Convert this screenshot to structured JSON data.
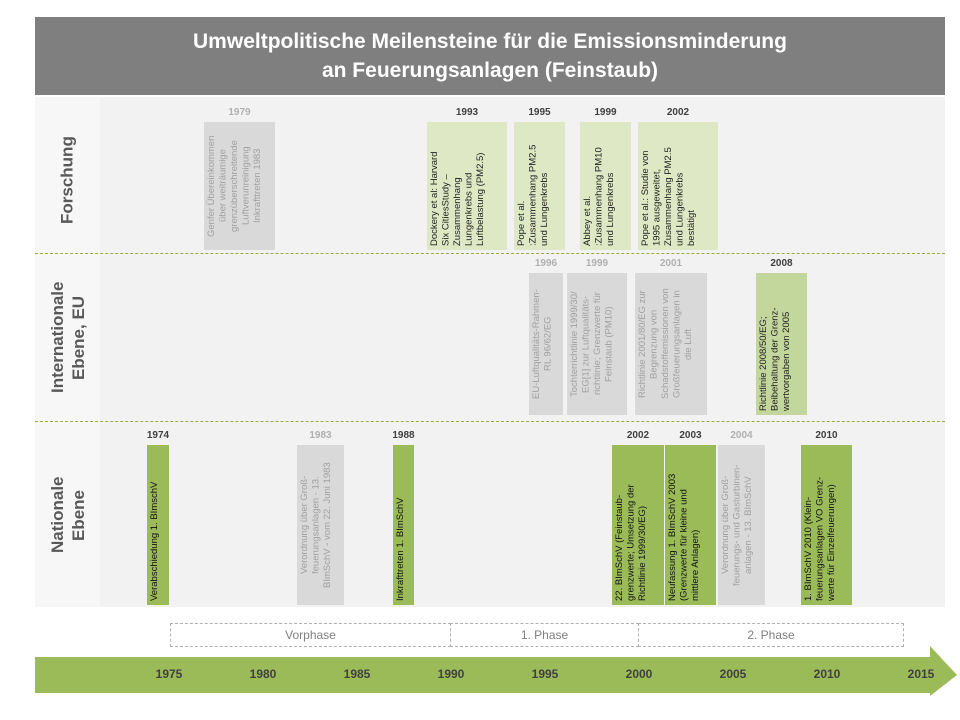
{
  "title": "Umweltpolitische Meilensteine für die Emissionsminderung\nan Feuerungsanlagen (Feinstaub)",
  "rows": [
    {
      "label": "Forschung"
    },
    {
      "label": "Internationale\nEbene, EU"
    },
    {
      "label": "Nationale\nEbene"
    }
  ],
  "colors": {
    "title_bg": "#7f7f7f",
    "gray": "#d9d9d9",
    "light_green": "#dfe8c4",
    "mid_green": "#c3d69b",
    "green": "#9bbb59"
  },
  "milestones": [
    {
      "row": "Forschung",
      "year": "1979",
      "style": "gray",
      "text": "Genfer Übereinkommen\nüber weiträumige\ngrenzüberschreitende\nLuftverunreinigung\nInkrafttreten 1983"
    },
    {
      "row": "Forschung",
      "year": "1993",
      "style": "light",
      "text": "Dockery et al: Harvard\nSix CitiesStudy –\nZusammenhang\nLungenkrebs und\nLuftbelastung (PM2.5)"
    },
    {
      "row": "Forschung",
      "year": "1995",
      "style": "light",
      "text": "Pope et al.\n:Zusammenhang PM2.5\nund Lungenkrebs"
    },
    {
      "row": "Forschung",
      "year": "1999",
      "style": "light",
      "text": "Abbey et al.\n:Zusammenhang PM10\nund Lungenkrebs"
    },
    {
      "row": "Forschung",
      "year": "2002",
      "style": "light",
      "text": "Pope et al.: Studie von\n1995 ausgeweitet,\nZusammenhang PM2.5\nund Lungenkrebs\nbestätigt"
    },
    {
      "row": "Internationale Ebene, EU",
      "year": "1996",
      "style": "gray",
      "text": "EU-Luftqualitäts-Rahmen-\nRL 96/62/EG"
    },
    {
      "row": "Internationale Ebene, EU",
      "year": "1999",
      "style": "gray",
      "text": "Tochterrichtlinie 1999/30/\nEG[1] zur Luftqualitäts-\nrichtlinie; Grenzwerte für\nFeinstaub (PM10)"
    },
    {
      "row": "Internationale Ebene, EU",
      "year": "2001",
      "style": "gray",
      "text": "Richtlinie 2001/80/EG zur\nBegrenzung von\nSchadstoffemissionen von\nGroßfeuerungsanlagen in\ndie Luft"
    },
    {
      "row": "Internationale Ebene, EU",
      "year": "2008",
      "style": "mid",
      "text": "Richtlinie 2008/50/EG;\nBeibehaltung der Grenz-\nwertvorgaben von 2005"
    },
    {
      "row": "Nationale Ebene",
      "year": "1974",
      "style": "green",
      "text": "Verabschiedung 1. BImschV"
    },
    {
      "row": "Nationale Ebene",
      "year": "1983",
      "style": "gray",
      "text": "Verordnung über Groß-\nfeuerungsanlagen - 13.\nBImSchV - vom 22. Juni 1983"
    },
    {
      "row": "Nationale Ebene",
      "year": "1988",
      "style": "green",
      "text": "Inkrafttreten 1. BImSchV"
    },
    {
      "row": "Nationale Ebene",
      "year": "2002",
      "style": "green",
      "text": "22. BImSchV (Feinstaub-\ngrenzwerte; Umsetzung der\nRichtlinie 1999/30/EG)"
    },
    {
      "row": "Nationale Ebene",
      "year": "2003",
      "style": "green",
      "text": "Neufassung 1. BImSchV 2003\n(Grenzwerte für kleine und\nmittlere Anlagen)"
    },
    {
      "row": "Nationale Ebene",
      "year": "2004",
      "style": "gray",
      "text": "Verordnung über Groß-\nfeuerungs- und Gasturbinen-\nanlagen - 13. BImSchV"
    },
    {
      "row": "Nationale Ebene",
      "year": "2010",
      "style": "green",
      "text": "1. BImSchV 2010 (Klein-\nfeuerungsanlagen VO Grenz-\nwerte für Einzelfeuerungen)"
    }
  ],
  "phases": [
    {
      "label": "Vorphase"
    },
    {
      "label": "1. Phase"
    },
    {
      "label": "2. Phase"
    }
  ],
  "axis": {
    "ticks": [
      "1975",
      "1980",
      "1985",
      "1990",
      "1995",
      "2000",
      "2005",
      "2010",
      "2015"
    ]
  }
}
